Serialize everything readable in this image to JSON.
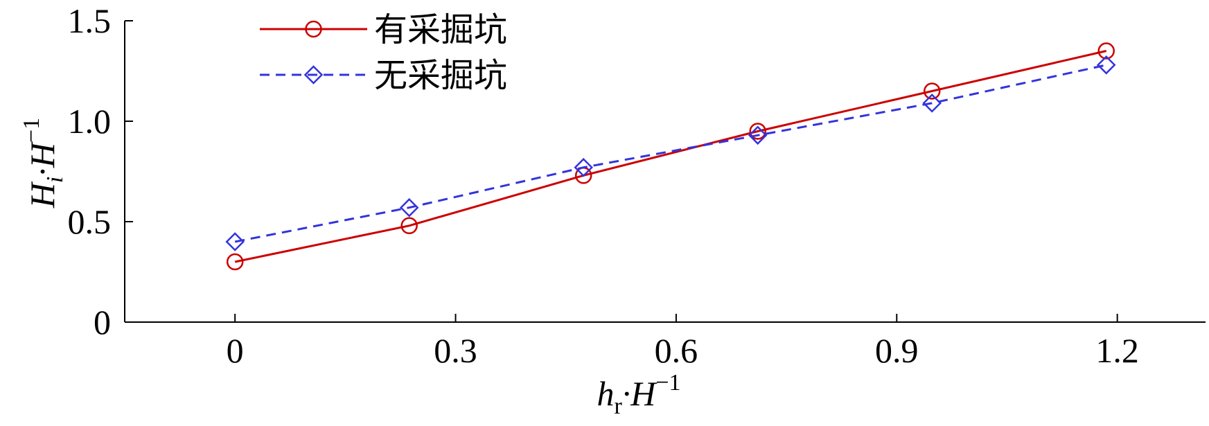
{
  "chart_data": {
    "type": "line",
    "title": "",
    "xlabel": {
      "main": "h",
      "sub": "r",
      "mid": "·H",
      "sup": "−1"
    },
    "ylabel": {
      "main": "H",
      "sub": "i",
      "mid": "·H",
      "sup": "−1"
    },
    "xlim": [
      -0.15,
      1.32
    ],
    "ylim": [
      0,
      1.5
    ],
    "xticks": [
      0,
      0.3,
      0.6,
      0.9,
      1.2
    ],
    "xtick_labels": [
      "0",
      "0.3",
      "0.6",
      "0.9",
      "1.2"
    ],
    "yticks": [
      0,
      0.5,
      1.0,
      1.5
    ],
    "ytick_labels": [
      "0",
      "0.5",
      "1.0",
      "1.5"
    ],
    "grid": false,
    "legend_position": "top-left",
    "series": [
      {
        "name": "有采掘坑",
        "color": "#cc0000",
        "line_style": "solid",
        "marker": "circle",
        "x": [
          0,
          0.237,
          0.474,
          0.711,
          0.948,
          1.185
        ],
        "y": [
          0.3,
          0.48,
          0.73,
          0.95,
          1.15,
          1.35
        ]
      },
      {
        "name": "无采掘坑",
        "color": "#3333dd",
        "line_style": "dashed",
        "marker": "diamond",
        "x": [
          0,
          0.237,
          0.474,
          0.711,
          0.948,
          1.185
        ],
        "y": [
          0.4,
          0.57,
          0.77,
          0.93,
          1.09,
          1.28
        ]
      }
    ]
  }
}
